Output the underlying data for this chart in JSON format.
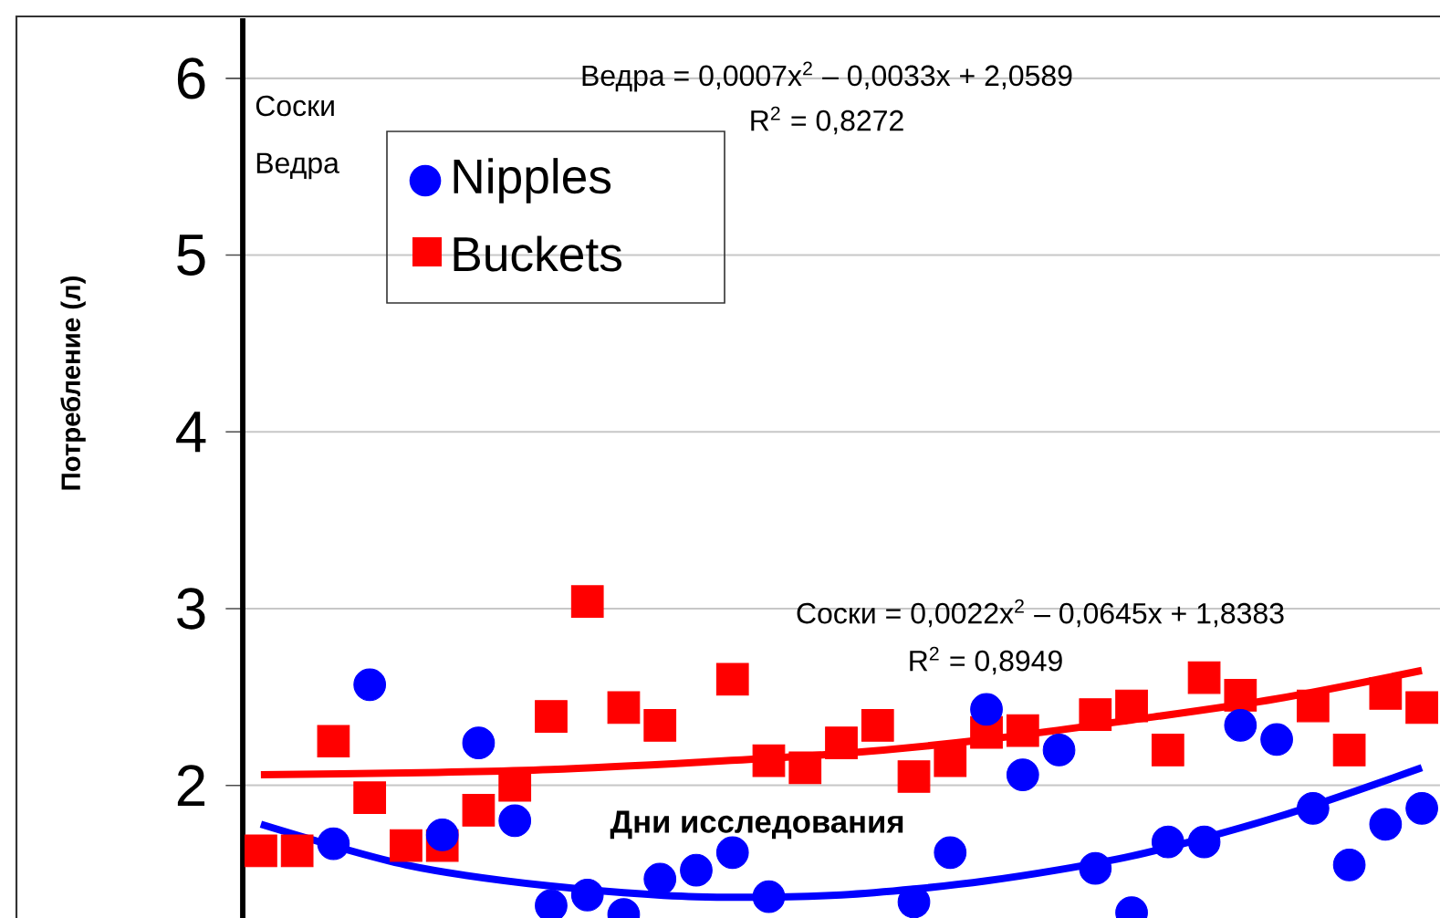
{
  "chart_data": {
    "type": "scatter",
    "xlabel": "Дни исследования",
    "ylabel": "Потребление (л)",
    "categories": [
      null,
      null,
      null,
      null,
      null,
      null,
      null,
      null,
      null,
      null,
      null,
      null,
      null,
      null,
      null,
      null,
      null,
      null,
      null,
      null,
      null,
      null,
      null,
      null,
      null,
      null,
      null,
      null,
      null,
      null,
      null,
      null,
      null
    ],
    "ylim": [
      1.25,
      6.34
    ],
    "yticks": [
      2,
      3,
      4,
      5,
      6
    ],
    "grid": "y",
    "legend": "top left",
    "series": [
      {
        "name": "Nipples",
        "color": "#0000ff",
        "marker": "circle",
        "values": [
          null,
          null,
          1.67,
          2.57,
          null,
          1.72,
          2.24,
          1.8,
          1.32,
          1.38,
          1.27,
          1.47,
          1.52,
          1.62,
          1.37,
          null,
          null,
          null,
          1.34,
          1.62,
          2.43,
          2.06,
          2.2,
          1.53,
          1.28,
          1.68,
          1.68,
          2.34,
          2.26,
          1.87,
          1.55,
          1.78,
          1.87
        ]
      },
      {
        "name": "Buckets",
        "color": "#ff0000",
        "marker": "square",
        "values": [
          1.63,
          1.63,
          2.25,
          1.93,
          1.66,
          1.66,
          1.86,
          2.0,
          2.39,
          3.04,
          2.44,
          2.34,
          null,
          2.6,
          2.14,
          2.1,
          2.24,
          2.34,
          2.05,
          2.14,
          2.3,
          2.31,
          null,
          2.4,
          2.45,
          2.2,
          2.61,
          2.51,
          null,
          2.45,
          2.2,
          2.52,
          2.44
        ]
      },
      {
        "type": "line",
        "color": "#0000ff",
        "marker": "none",
        "line_style": "solid",
        "values": [
          1.78,
          null,
          null,
          null,
          1.55,
          null,
          null,
          null,
          1.43,
          null,
          null,
          null,
          1.37,
          null,
          null,
          null,
          1.38,
          null,
          null,
          null,
          1.46,
          null,
          null,
          null,
          1.6,
          null,
          null,
          null,
          1.82,
          null,
          null,
          null,
          2.1
        ]
      },
      {
        "type": "line",
        "color": "#ff0000",
        "marker": "none",
        "line_style": "solid",
        "values": [
          2.06,
          null,
          null,
          null,
          2.07,
          null,
          null,
          null,
          2.09,
          null,
          null,
          null,
          2.13,
          null,
          null,
          null,
          2.18,
          null,
          null,
          null,
          2.26,
          null,
          null,
          null,
          2.37,
          null,
          null,
          null,
          2.49,
          null,
          null,
          null,
          2.65
        ]
      }
    ],
    "annotations": [
      "Ведра = 0,0007x$^{2}$ – 0,0033x + 2,0589",
      "R$^{2}$ = 0,8272",
      "Соски = 0,0022x$^{2}$ – 0,0645x + 1,8383",
      "R$^{2}$ = 0,8949",
      "Соски",
      "Ведра"
    ]
  }
}
